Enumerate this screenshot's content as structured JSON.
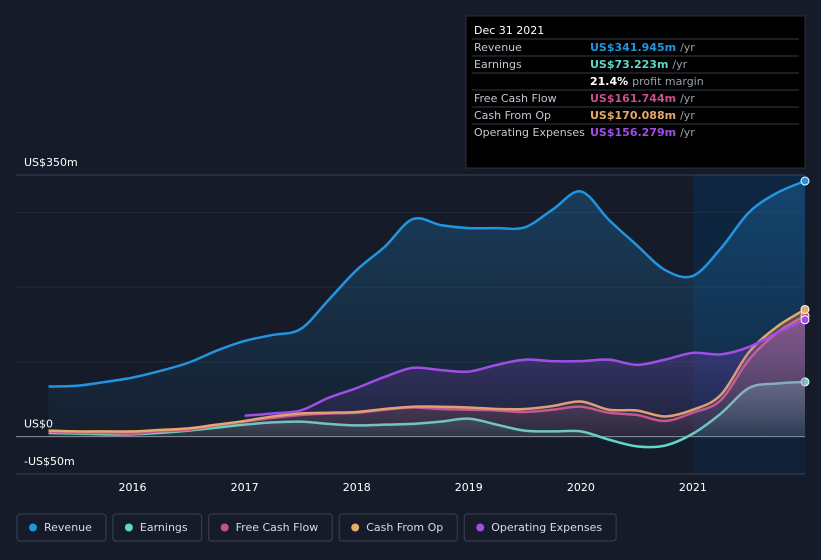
{
  "chart_data": {
    "type": "area-line",
    "x": [
      2015.25,
      2015.5,
      2015.75,
      2016.0,
      2016.25,
      2016.5,
      2016.75,
      2017.0,
      2017.25,
      2017.5,
      2017.75,
      2018.0,
      2018.25,
      2018.5,
      2018.75,
      2019.0,
      2019.25,
      2019.5,
      2019.75,
      2020.0,
      2020.25,
      2020.5,
      2020.75,
      2021.0,
      2021.25,
      2021.5,
      2021.75,
      2022.0
    ],
    "series": [
      {
        "name": "Revenue",
        "color": "#2394df",
        "values": [
          67,
          68,
          73,
          79,
          88,
          99,
          115,
          128,
          136,
          144,
          183,
          223,
          254,
          291,
          283,
          279,
          279,
          280,
          304,
          328,
          290,
          256,
          223,
          215,
          252,
          300,
          326,
          341.945
        ]
      },
      {
        "name": "Earnings",
        "color": "#5fd8c7",
        "values": [
          5,
          4,
          3,
          3,
          5,
          8,
          12,
          16,
          19,
          20,
          17,
          15,
          16,
          17,
          20,
          24,
          16,
          8,
          7,
          7,
          -4,
          -13,
          -12,
          4,
          31,
          65,
          71,
          73.223
        ]
      },
      {
        "name": "Free Cash Flow",
        "color": "#c8508b",
        "values": [
          7,
          5,
          5,
          4,
          7,
          9,
          15,
          20,
          25,
          29,
          31,
          32,
          36,
          39,
          37,
          36,
          35,
          33,
          36,
          40,
          32,
          29,
          21,
          32,
          49,
          103,
          139,
          161.744
        ]
      },
      {
        "name": "Cash From Op",
        "color": "#e6a96a",
        "values": [
          8,
          7,
          7,
          7,
          9,
          11,
          16,
          21,
          27,
          31,
          32,
          33,
          37,
          40,
          40,
          39,
          37,
          37,
          41,
          47,
          36,
          35,
          27,
          36,
          56,
          113,
          147,
          170.088
        ]
      },
      {
        "name": "Operating Expenses",
        "color": "#a04ee6",
        "values": [
          null,
          null,
          null,
          null,
          null,
          null,
          null,
          28,
          31,
          35,
          52,
          65,
          80,
          92,
          89,
          87,
          96,
          103,
          101,
          101,
          103,
          96,
          103,
          112,
          110,
          120,
          139,
          156.279
        ]
      }
    ],
    "xlim": [
      2014.96,
      2022.0
    ],
    "xticks": [
      2016,
      2017,
      2018,
      2019,
      2020,
      2021
    ],
    "ylim": [
      -50,
      350
    ],
    "yticks": [
      {
        "value": 350,
        "label": "US$350m"
      },
      {
        "value": 0,
        "label": "US$0"
      },
      {
        "value": -50,
        "label": "-US$50m"
      }
    ],
    "grid_lines": [
      100,
      200,
      300
    ],
    "highlight_from": 2021,
    "tooltip": {
      "title": "Dec 31 2021",
      "rows": [
        {
          "label": "Revenue",
          "value": "US$341.945m",
          "unit": "/yr"
        },
        {
          "label": "Earnings",
          "value": "US$73.223m",
          "unit": "/yr"
        },
        {
          "value": "21.4%",
          "unit": "profit margin"
        },
        {
          "label": "Free Cash Flow",
          "value": "US$161.744m",
          "unit": "/yr"
        },
        {
          "label": "Cash From Op",
          "value": "US$170.088m",
          "unit": "/yr"
        },
        {
          "label": "Operating Expenses",
          "value": "US$156.279m",
          "unit": "/yr"
        }
      ]
    }
  }
}
